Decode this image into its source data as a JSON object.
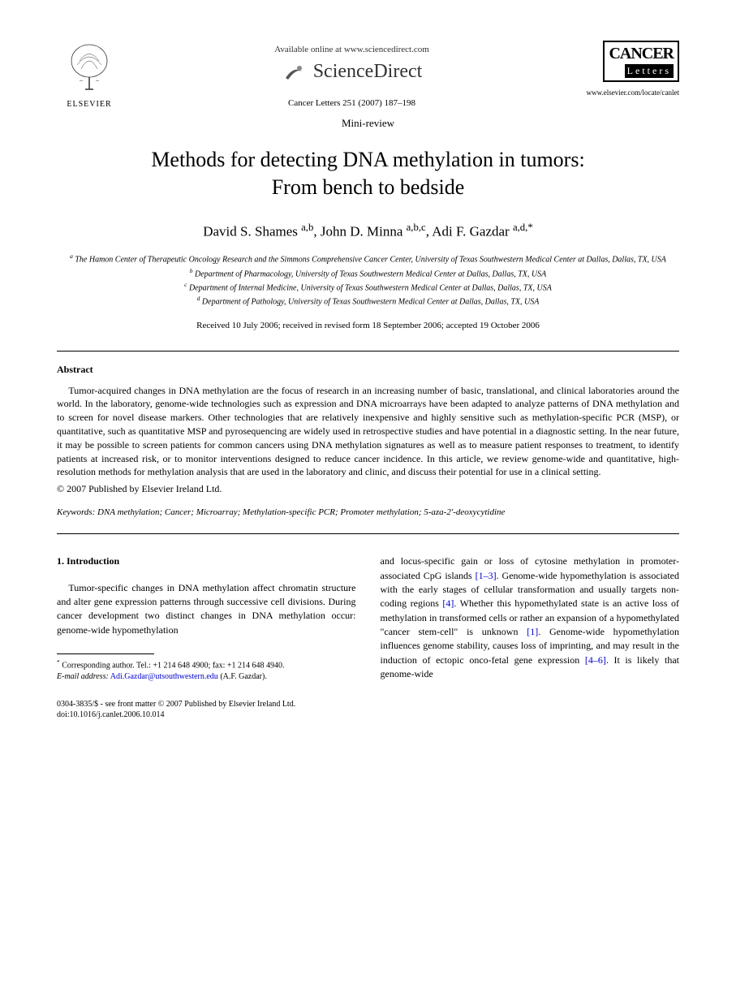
{
  "header": {
    "available_text": "Available online at www.sciencedirect.com",
    "sciencedirect": "ScienceDirect",
    "citation": "Cancer Letters 251 (2007) 187–198",
    "elsevier": "ELSEVIER",
    "journal_name_1": "CANCER",
    "journal_name_2": "Letters",
    "journal_url": "www.elsevier.com/locate/canlet"
  },
  "article": {
    "type": "Mini-review",
    "title_line1": "Methods for detecting DNA methylation in tumors:",
    "title_line2": "From bench to bedside",
    "authors_html": "David S. Shames <sup>a,b</sup>, John D. Minna <sup>a,b,c</sup>, Adi F. Gazdar <sup>a,d,*</sup>",
    "affiliations": {
      "a": "The Hamon Center of Therapeutic Oncology Research and the Simmons Comprehensive Cancer Center, University of Texas Southwestern Medical Center at Dallas, Dallas, TX, USA",
      "b": "Department of Pharmacology, University of Texas Southwestern Medical Center at Dallas, Dallas, TX, USA",
      "c": "Department of Internal Medicine, University of Texas Southwestern Medical Center at Dallas, Dallas, TX, USA",
      "d": "Department of Pathology, University of Texas Southwestern Medical Center at Dallas, Dallas, TX, USA"
    },
    "dates": "Received 10 July 2006; received in revised form 18 September 2006; accepted 19 October 2006"
  },
  "abstract": {
    "heading": "Abstract",
    "text": "Tumor-acquired changes in DNA methylation are the focus of research in an increasing number of basic, translational, and clinical laboratories around the world. In the laboratory, genome-wide technologies such as expression and DNA microarrays have been adapted to analyze patterns of DNA methylation and to screen for novel disease markers. Other technologies that are relatively inexpensive and highly sensitive such as methylation-specific PCR (MSP), or quantitative, such as quantitative MSP and pyrosequencing are widely used in retrospective studies and have potential in a diagnostic setting. In the near future, it may be possible to screen patients for common cancers using DNA methylation signatures as well as to measure patient responses to treatment, to identify patients at increased risk, or to monitor interventions designed to reduce cancer incidence. In this article, we review genome-wide and quantitative, high- resolution methods for methylation analysis that are used in the laboratory and clinic, and discuss their potential for use in a clinical setting.",
    "copyright": "© 2007 Published by Elsevier Ireland Ltd."
  },
  "keywords": {
    "label": "Keywords:",
    "text": "DNA methylation; Cancer; Microarray; Methylation-specific PCR; Promoter methylation; 5-aza-2′-deoxycytidine"
  },
  "body": {
    "section_heading": "1. Introduction",
    "col1_para": "Tumor-specific changes in DNA methylation affect chromatin structure and alter gene expression patterns through successive cell divisions. During cancer development two distinct changes in DNA methylation occur: genome-wide hypomethylation",
    "col2_p1": "and locus-specific gain or loss of cytosine methylation in promoter-associated CpG islands ",
    "ref1": "[1–3]",
    "col2_p2": ". Genome-wide hypomethylation is associated with the early stages of cellular transformation and usually targets non-coding regions ",
    "ref2": "[4]",
    "col2_p3": ". Whether this hypomethylated state is an active loss of methylation in transformed cells or rather an expansion of a hypomethylated \"cancer stem-cell\" is unknown ",
    "ref3": "[1]",
    "col2_p4": ". Genome-wide hypomethylation influences genome stability, causes loss of imprinting, and may result in the induction of ectopic onco-fetal gene expression ",
    "ref4": "[4–6]",
    "col2_p5": ". It is likely that genome-wide"
  },
  "footnote": {
    "corresponding": "Corresponding author. Tel.: +1 214 648 4900; fax: +1 214 648 4940.",
    "email_label": "E-mail address:",
    "email": "Adi.Gazdar@utsouthwestern.edu",
    "email_attribution": "(A.F. Gazdar)."
  },
  "bottom": {
    "issn": "0304-3835/$ - see front matter © 2007 Published by Elsevier Ireland Ltd.",
    "doi": "doi:10.1016/j.canlet.2006.10.014"
  },
  "colors": {
    "link": "#0000cc",
    "text": "#000000",
    "background": "#ffffff"
  }
}
